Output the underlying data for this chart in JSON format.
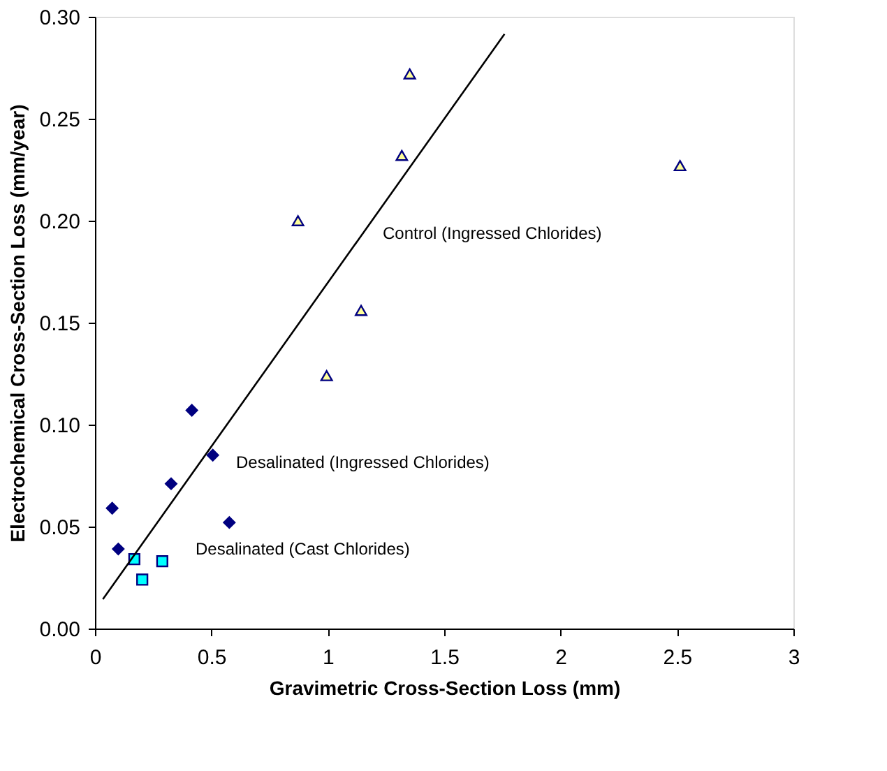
{
  "chart_data": {
    "type": "scatter",
    "xlabel": "Gravimetric Cross-Section Loss (mm)",
    "ylabel": "Electrochemical Cross-Section Loss (mm/year)",
    "xlim": [
      0,
      3
    ],
    "xticks": [
      0,
      0.5,
      1,
      1.5,
      2,
      2.5,
      3
    ],
    "ylim": [
      0,
      0.3
    ],
    "yticks": [
      {
        "value": 0,
        "label": "0.00"
      },
      0.05,
      {
        "value": 0.1,
        "label": "0.10"
      },
      0.15,
      {
        "value": 0.2,
        "label": "0.20"
      },
      0.25,
      {
        "value": 0.3,
        "label": "0.30"
      }
    ],
    "grid": false,
    "series": [
      {
        "name": "Control (Ingressed Chlorides)",
        "marker": "triangle",
        "color": "#ffff99",
        "x": [
          1.352,
          1.318,
          0.872,
          1.143,
          2.513,
          0.995
        ],
        "values": [
          0.272,
          0.232,
          0.2,
          0.156,
          0.227,
          0.124
        ]
      },
      {
        "name": "Desalinated (Ingressed Chlorides)",
        "marker": "diamond",
        "color": "#000080",
        "x": [
          0.416,
          0.506,
          0.327,
          0.074,
          0.1,
          0.577
        ],
        "values": [
          0.107,
          0.085,
          0.071,
          0.059,
          0.039,
          0.052
        ]
      },
      {
        "name": "Desalinated (Cast Chlorides)",
        "marker": "square",
        "color": "#00ffff",
        "x": [
          0.169,
          0.203,
          0.289
        ],
        "values": [
          0.034,
          0.024,
          0.033
        ]
      },
      {
        "type": "line",
        "line_style": "solid",
        "color": "#000000",
        "x": [
          0.034,
          1.759
        ],
        "values": [
          0.0144,
          0.2915
        ]
      }
    ]
  }
}
